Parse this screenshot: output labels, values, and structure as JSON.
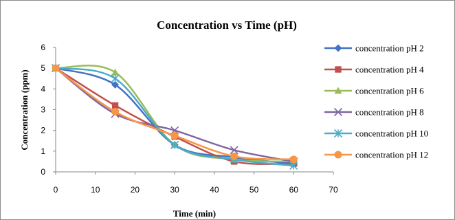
{
  "chart_data": {
    "type": "line",
    "title": "Concentration vs Time (pH)",
    "xlabel": "Time (min)",
    "ylabel": "Concentration (ppm)",
    "xlim": [
      0,
      70
    ],
    "ylim": [
      0,
      6
    ],
    "xticks": [
      0,
      10,
      20,
      30,
      40,
      50,
      60,
      70
    ],
    "yticks": [
      0,
      1,
      2,
      3,
      4,
      5,
      6
    ],
    "grid": false,
    "smooth": true,
    "legend_position": "right",
    "x": [
      0,
      15,
      30,
      45,
      60
    ],
    "series": [
      {
        "name": "concentration pH 2",
        "color": "#4472C4",
        "marker": "diamond",
        "values": [
          5.0,
          4.2,
          1.3,
          0.7,
          0.4
        ]
      },
      {
        "name": "concentration pH 4",
        "color": "#C0504D",
        "marker": "square",
        "values": [
          5.0,
          3.2,
          1.7,
          0.5,
          0.4
        ]
      },
      {
        "name": "concentration pH 6",
        "color": "#9BBB59",
        "marker": "triangle",
        "values": [
          5.0,
          4.8,
          1.3,
          0.6,
          0.5
        ]
      },
      {
        "name": "concentration pH 8",
        "color": "#8064A2",
        "marker": "x",
        "values": [
          5.0,
          2.8,
          2.0,
          1.05,
          0.5
        ]
      },
      {
        "name": "concentration pH 10",
        "color": "#4BACC6",
        "marker": "star",
        "values": [
          5.0,
          4.5,
          1.3,
          0.6,
          0.3
        ]
      },
      {
        "name": "concentration pH 12",
        "color": "#F79646",
        "marker": "circle",
        "values": [
          5.0,
          2.9,
          1.75,
          0.75,
          0.6
        ]
      }
    ]
  }
}
